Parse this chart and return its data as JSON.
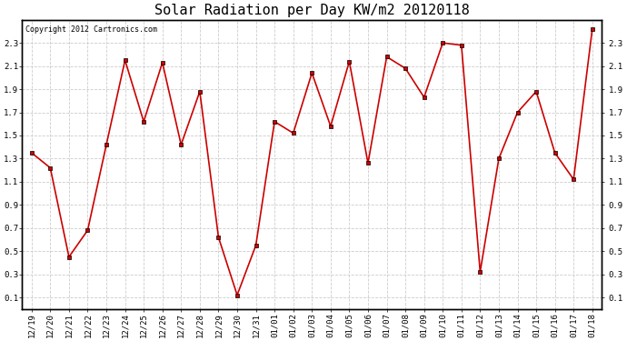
{
  "title": "Solar Radiation per Day KW/m2 20120118",
  "copyright_text": "Copyright 2012 Cartronics.com",
  "labels": [
    "12/19",
    "12/20",
    "12/21",
    "12/22",
    "12/23",
    "12/24",
    "12/25",
    "12/26",
    "12/27",
    "12/28",
    "12/29",
    "12/30",
    "12/31",
    "01/01",
    "01/02",
    "01/03",
    "01/04",
    "01/05",
    "01/06",
    "01/07",
    "01/08",
    "01/09",
    "01/10",
    "01/11",
    "01/12",
    "01/13",
    "01/14",
    "01/15",
    "01/16",
    "01/17",
    "01/18"
  ],
  "values": [
    1.35,
    1.22,
    0.45,
    0.68,
    1.42,
    2.15,
    1.62,
    2.13,
    1.42,
    1.88,
    0.62,
    0.12,
    0.55,
    1.62,
    1.52,
    2.04,
    1.58,
    2.14,
    1.26,
    2.18,
    2.08,
    1.83,
    2.3,
    2.28,
    0.32,
    1.3,
    1.7,
    1.88,
    1.35,
    1.12,
    2.42
  ],
  "line_color": "#cc0000",
  "bg_color": "#ffffff",
  "grid_color": "#cccccc",
  "ylim": [
    0.0,
    2.5
  ],
  "yticks": [
    0.1,
    0.3,
    0.5,
    0.7,
    0.9,
    1.1,
    1.3,
    1.5,
    1.7,
    1.9,
    2.1,
    2.3
  ],
  "ytick_labels": [
    "0.1",
    "0.3",
    "0.5",
    "0.7",
    "0.9",
    "1.1",
    "1.3",
    "1.5",
    "1.7",
    "1.9",
    "2.1",
    "2.3"
  ],
  "title_fontsize": 11,
  "copyright_fontsize": 6,
  "tick_fontsize": 6.5
}
